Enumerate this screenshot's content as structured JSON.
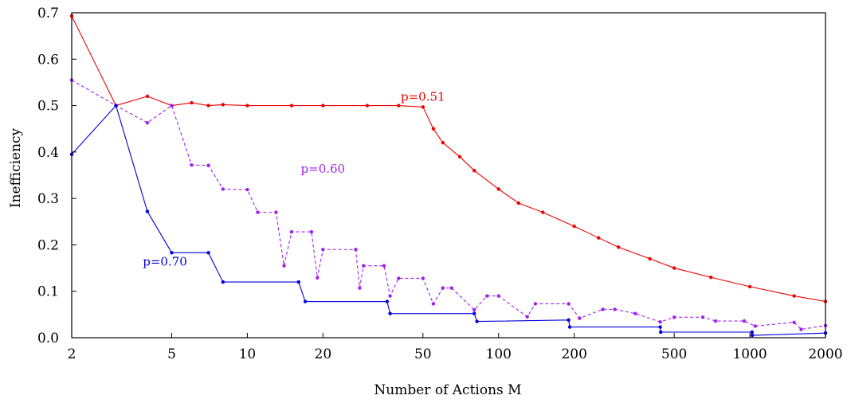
{
  "chart_data": {
    "type": "line",
    "title": "",
    "xlabel": "Number of Actions M",
    "ylabel": "Inefficiency",
    "xscale": "log",
    "xlim": [
      2,
      2000
    ],
    "ylim": [
      0,
      0.7
    ],
    "grid": false,
    "legend": "none",
    "x_ticks": [
      2,
      5,
      10,
      20,
      50,
      100,
      200,
      500,
      1000,
      2000
    ],
    "x_tick_labels": [
      "2",
      "5",
      "10",
      "20",
      "50",
      "100",
      "200",
      "500",
      "1000",
      "2000"
    ],
    "y_ticks": [
      0,
      0.1,
      0.2,
      0.3,
      0.4,
      0.5,
      0.6,
      0.7
    ],
    "y_tick_labels": [
      "0.0",
      "0.1",
      "0.2",
      "0.3",
      "0.4",
      "0.5",
      "0.6",
      "0.7"
    ],
    "series": [
      {
        "name": "p=0.51",
        "color": "#ee0000",
        "line_style": "solid",
        "label_at": [
          50,
          0.51
        ],
        "x": [
          2,
          3,
          4,
          5,
          6,
          7,
          8,
          10,
          15,
          20,
          30,
          40,
          50,
          55,
          60,
          70,
          80,
          100,
          120,
          150,
          200,
          250,
          300,
          400,
          500,
          700,
          1000,
          1500,
          2000
        ],
        "y": [
          0.693,
          0.5,
          0.52,
          0.5,
          0.506,
          0.5,
          0.502,
          0.5,
          0.5,
          0.5,
          0.5,
          0.5,
          0.497,
          0.45,
          0.42,
          0.39,
          0.36,
          0.32,
          0.29,
          0.27,
          0.24,
          0.215,
          0.195,
          0.17,
          0.15,
          0.13,
          0.11,
          0.09,
          0.078
        ]
      },
      {
        "name": "p=0.60",
        "color": "#a020f0",
        "line_style": "dashed",
        "label_at": [
          20,
          0.355
        ],
        "x": [
          2,
          3,
          4,
          5,
          6,
          7,
          8,
          10,
          11,
          13,
          14,
          15,
          18,
          19,
          20,
          27,
          28,
          29,
          35,
          37,
          40,
          50,
          55,
          60,
          65,
          80,
          90,
          100,
          130,
          140,
          190,
          210,
          260,
          290,
          350,
          440,
          500,
          650,
          730,
          950,
          1050,
          1500,
          1600,
          2000
        ],
        "y": [
          0.555,
          0.5,
          0.463,
          0.5,
          0.372,
          0.371,
          0.32,
          0.319,
          0.27,
          0.27,
          0.155,
          0.228,
          0.228,
          0.129,
          0.19,
          0.19,
          0.107,
          0.155,
          0.155,
          0.09,
          0.128,
          0.128,
          0.073,
          0.107,
          0.107,
          0.06,
          0.09,
          0.09,
          0.045,
          0.073,
          0.073,
          0.042,
          0.061,
          0.061,
          0.052,
          0.034,
          0.044,
          0.044,
          0.036,
          0.036,
          0.025,
          0.033,
          0.018,
          0.026
        ]
      },
      {
        "name": "p=0.70",
        "color": "#0000dd",
        "line_style": "solid",
        "label_at": [
          4.7,
          0.155
        ],
        "x": [
          2,
          3,
          4,
          5,
          7,
          8,
          16,
          17,
          36,
          37,
          80,
          82,
          190,
          192,
          440,
          442,
          1020,
          1022,
          2000
        ],
        "y": [
          0.395,
          0.5,
          0.272,
          0.183,
          0.183,
          0.12,
          0.12,
          0.078,
          0.078,
          0.052,
          0.052,
          0.035,
          0.038,
          0.023,
          0.023,
          0.012,
          0.012,
          0.005,
          0.01
        ]
      }
    ]
  }
}
